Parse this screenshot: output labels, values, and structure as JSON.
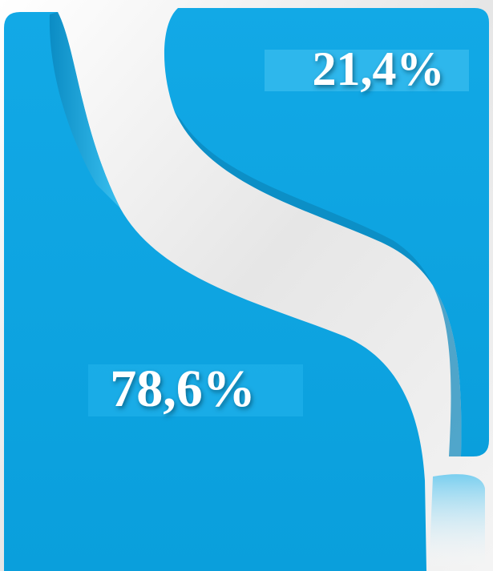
{
  "labels": {
    "top": "21,4%",
    "bottom": "78,6%"
  }
}
